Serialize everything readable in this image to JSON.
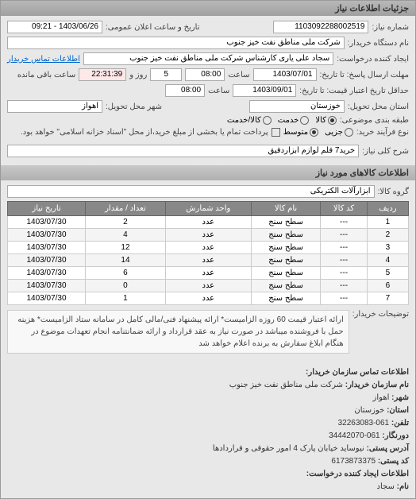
{
  "header": {
    "title": "جزئیات اطلاعات نیاز"
  },
  "info": {
    "niaz_no_label": "شماره نیاز:",
    "niaz_no": "1103092288002519",
    "public_date_label": "تاریخ و ساعت اعلان عمومی:",
    "public_date": "1403/06/26 - 09:21",
    "buyer_org_label": "نام دستگاه خریدار:",
    "buyer_org": "شرکت ملی مناطق نفت خیز جنوب",
    "requester_label": "ایجاد کننده درخواست:",
    "requester": "سجاد علی یاری کارشناس شرکت ملی مناطق نفت خیز جنوب",
    "contact_link": "اطلاعات تماس خریدار",
    "deadline_send_label": "مهلت ارسال پاسخ: تا تاریخ:",
    "deadline_send_date": "1403/07/01",
    "time_label": "ساعت",
    "deadline_send_time": "08:00",
    "days_left": "5",
    "days_left_label": "روز و",
    "time_left": "22:31:39",
    "time_left_label": "ساعت باقی مانده",
    "validity_label": "حداقل تاریخ اعتبار قیمت: تا تاریخ:",
    "validity_date": "1403/09/01",
    "validity_time": "08:00",
    "province_label": "استان محل تحویل:",
    "province": "خوزستان",
    "city_label": "شهر محل تحویل:",
    "city": "اهواز",
    "category_label": "طبقه بندی موضوعی:",
    "radio_kala": "کالا",
    "radio_khadmat": "خدمت",
    "radio_kala_khadmat": "کالا/خدمت",
    "process_label": "نوع فرآیند خرید:",
    "radio_jozei": "جزیی",
    "radio_motavaset": "متوسط",
    "process_note": "پرداخت تمام یا بخشی از مبلغ خرید،از محل \"اسناد خزانه اسلامی\" خواهد بود.",
    "desc_label": "شرح کلی نیاز:",
    "desc": "خرید7 قلم لوازم ابزاردقیق"
  },
  "goods_section": {
    "title": "اطلاعات کالاهای مورد نیاز",
    "group_label": "گروه کالا:",
    "group": "ابزارآلات الکتریکی"
  },
  "table": {
    "columns": [
      "ردیف",
      "کد کالا",
      "نام کالا",
      "واحد شمارش",
      "تعداد / مقدار",
      "تاریخ نیاز"
    ],
    "rows": [
      [
        "1",
        "---",
        "سطح سنج",
        "عدد",
        "2",
        "1403/07/30"
      ],
      [
        "2",
        "---",
        "سطح سنج",
        "عدد",
        "4",
        "1403/07/30"
      ],
      [
        "3",
        "---",
        "سطح سنج",
        "عدد",
        "12",
        "1403/07/30"
      ],
      [
        "4",
        "---",
        "سطح سنج",
        "عدد",
        "14",
        "1403/07/30"
      ],
      [
        "5",
        "---",
        "سطح سنج",
        "عدد",
        "6",
        "1403/07/30"
      ],
      [
        "6",
        "---",
        "سطح سنج",
        "عدد",
        "0",
        "1403/07/30"
      ],
      [
        "7",
        "---",
        "سطح سنج",
        "عدد",
        "1",
        "1403/07/30"
      ]
    ]
  },
  "notes": {
    "label": "توضیحات خریدار:",
    "text": "ارائه اعتبار قیمت 60 روزه الزامیست* ارائه پیشنهاد فنی/مالی کامل در سامانه ستاد الزامیست* هزینه حمل با فروشنده میباشد در صورت نیاز به عقد قرارداد و ارائه ضمانتنامه انجام تعهدات موضوع در هنگام ابلاغ سفارش به برنده اعلام خواهد شد"
  },
  "footer": {
    "title": "اطلاعات تماس سازمان خریدار:",
    "org_label": "نام سازمان خریدار:",
    "org": "شرکت ملی مناطق نفت خیز جنوب",
    "city_label": "شهر:",
    "city": "اهواز",
    "province_label": "استان:",
    "province": "خوزستان",
    "phone_label": "تلفن:",
    "phone": "061-32263083",
    "fax_label": "دورنگار:",
    "fax": "061-34442070",
    "address_label": "آدرس پستی:",
    "address": "نیوساید خیابان پارک 4 امور حقوقی و قراردادها",
    "postcode_label": "کد پستی:",
    "postcode": "6173873375",
    "creator_label": "اطلاعات ایجاد کننده درخواست:",
    "name_label": "نام:",
    "name": "سجاد"
  }
}
